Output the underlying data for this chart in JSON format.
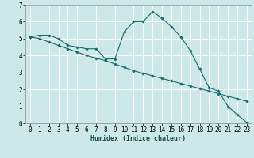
{
  "xlabel": "Humidex (Indice chaleur)",
  "bg_color": "#cce8e8",
  "grid_color": "#ffffff",
  "line_color": "#1a6b6b",
  "xlim": [
    -0.5,
    23.5
  ],
  "ylim": [
    0,
    7
  ],
  "xticks": [
    0,
    1,
    2,
    3,
    4,
    5,
    6,
    7,
    8,
    9,
    10,
    11,
    12,
    13,
    14,
    15,
    16,
    17,
    18,
    19,
    20,
    21,
    22,
    23
  ],
  "yticks": [
    0,
    1,
    2,
    3,
    4,
    5,
    6,
    7
  ],
  "line1_x": [
    0,
    1,
    2,
    3,
    4,
    5,
    6,
    7,
    8,
    9,
    10,
    11,
    12,
    13,
    14,
    15,
    16,
    17,
    18,
    19,
    20,
    21,
    22,
    23
  ],
  "line1_y": [
    5.1,
    5.2,
    5.2,
    5.0,
    4.6,
    4.5,
    4.4,
    4.4,
    3.8,
    3.8,
    5.4,
    6.0,
    6.0,
    6.6,
    6.2,
    5.7,
    5.1,
    4.3,
    3.2,
    2.1,
    1.9,
    1.0,
    0.5,
    0.05
  ],
  "line2_x": [
    0,
    1,
    2,
    3,
    4,
    5,
    6,
    7,
    8,
    9,
    10,
    11,
    12,
    13,
    14,
    15,
    16,
    17,
    18,
    19,
    20,
    21,
    22,
    23
  ],
  "line2_y": [
    5.1,
    5.0,
    4.8,
    4.6,
    4.4,
    4.2,
    4.0,
    3.85,
    3.7,
    3.5,
    3.3,
    3.1,
    2.95,
    2.8,
    2.65,
    2.5,
    2.35,
    2.2,
    2.05,
    1.9,
    1.75,
    1.6,
    1.45,
    1.3
  ],
  "xlabel_fontsize": 6.0,
  "tick_fontsize": 5.5,
  "linewidth": 0.8,
  "markersize": 1.8
}
